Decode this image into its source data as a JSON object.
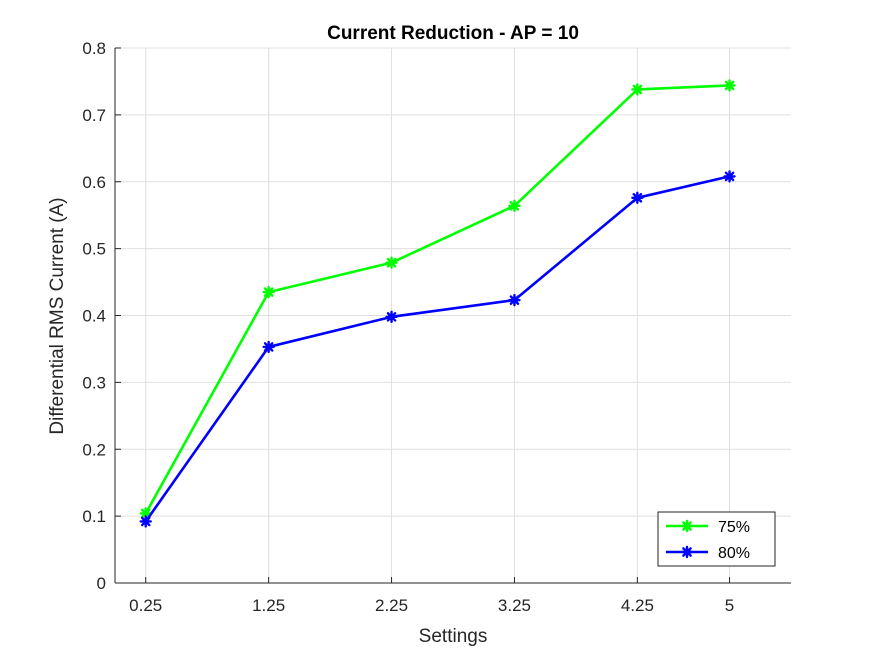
{
  "chart_data": {
    "type": "line",
    "title": "Current Reduction - AP = 10",
    "xlabel": "Settings",
    "ylabel": "Differential RMS Current (A)",
    "x": [
      0.25,
      1.25,
      2.25,
      3.25,
      4.25,
      5
    ],
    "x_tick_labels": [
      "0.25",
      "1.25",
      "2.25",
      "3.25",
      "4.25",
      "5"
    ],
    "xlim": [
      0,
      5.5
    ],
    "ylim": [
      0,
      0.8
    ],
    "y_ticks": [
      0,
      0.1,
      0.2,
      0.3,
      0.4,
      0.5,
      0.6,
      0.7,
      0.8
    ],
    "y_tick_labels": [
      "0",
      "0.1",
      "0.2",
      "0.3",
      "0.4",
      "0.5",
      "0.6",
      "0.7",
      "0.8"
    ],
    "grid": true,
    "legend_position": "bottom-right",
    "series": [
      {
        "name": "75%",
        "color": "#00ff00",
        "marker": "asterisk",
        "values": [
          0.104,
          0.435,
          0.479,
          0.564,
          0.738,
          0.744
        ]
      },
      {
        "name": "80%",
        "color": "#0000ff",
        "marker": "asterisk",
        "values": [
          0.092,
          0.353,
          0.398,
          0.423,
          0.576,
          0.608
        ]
      }
    ]
  }
}
